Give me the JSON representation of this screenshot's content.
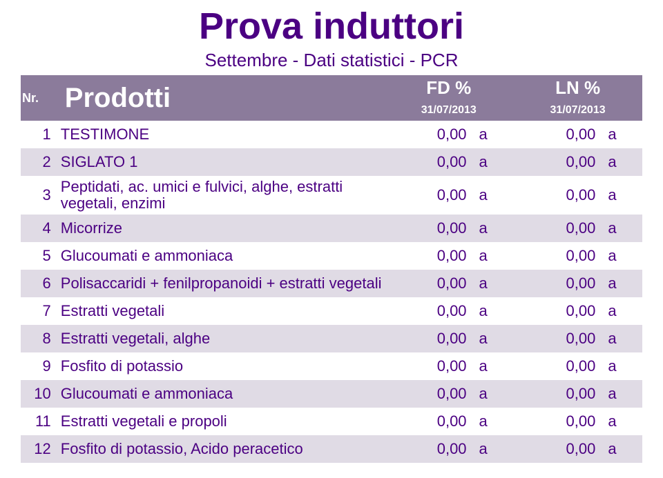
{
  "title": {
    "text": "Prova induttori",
    "color": "#4b0082",
    "fontsize": 54
  },
  "subtitle": {
    "text": "Settembre - Dati statistici - PCR",
    "color": "#4b0082",
    "fontsize": 26
  },
  "header": {
    "bg": "#8b7b9b",
    "fg": "#ffffff",
    "nr_label": "Nr.",
    "prod_label": "Prodotti",
    "group1": "FD %",
    "group2": "LN %",
    "date1": "31/07/2013",
    "date2": "31/07/2013"
  },
  "cell_text_color": "#4b0082",
  "row_even_bg": "#ffffff",
  "row_odd_bg": "#e0dbe5",
  "rows": [
    {
      "n": "1",
      "prod": "TESTIMONE",
      "v1": "0,00",
      "l1": "a",
      "v2": "0,00",
      "l2": "a"
    },
    {
      "n": "2",
      "prod": "SIGLATO 1",
      "v1": "0,00",
      "l1": "a",
      "v2": "0,00",
      "l2": "a"
    },
    {
      "n": "3",
      "prod": "Peptidati, ac. umici e fulvici, alghe, estratti vegetali, enzimi",
      "v1": "0,00",
      "l1": "a",
      "v2": "0,00",
      "l2": "a"
    },
    {
      "n": "4",
      "prod": "Micorrize",
      "v1": "0,00",
      "l1": "a",
      "v2": "0,00",
      "l2": "a"
    },
    {
      "n": "5",
      "prod": "Glucoumati e ammoniaca",
      "v1": "0,00",
      "l1": "a",
      "v2": "0,00",
      "l2": "a"
    },
    {
      "n": "6",
      "prod": "Polisaccaridi + fenilpropanoidi + estratti vegetali",
      "v1": "0,00",
      "l1": "a",
      "v2": "0,00",
      "l2": "a"
    },
    {
      "n": "7",
      "prod": "Estratti vegetali",
      "v1": "0,00",
      "l1": "a",
      "v2": "0,00",
      "l2": "a"
    },
    {
      "n": "8",
      "prod": "Estratti vegetali, alghe",
      "v1": "0,00",
      "l1": "a",
      "v2": "0,00",
      "l2": "a"
    },
    {
      "n": "9",
      "prod": "Fosfito di potassio",
      "v1": "0,00",
      "l1": "a",
      "v2": "0,00",
      "l2": "a"
    },
    {
      "n": "10",
      "prod": "Glucoumati e ammoniaca",
      "v1": "0,00",
      "l1": "a",
      "v2": "0,00",
      "l2": "a"
    },
    {
      "n": "11",
      "prod": "Estratti vegetali e propoli",
      "v1": "0,00",
      "l1": "a",
      "v2": "0,00",
      "l2": "a"
    },
    {
      "n": "12",
      "prod": "Fosfito di potassio, Acido peracetico",
      "v1": "0,00",
      "l1": "a",
      "v2": "0,00",
      "l2": "a"
    }
  ]
}
